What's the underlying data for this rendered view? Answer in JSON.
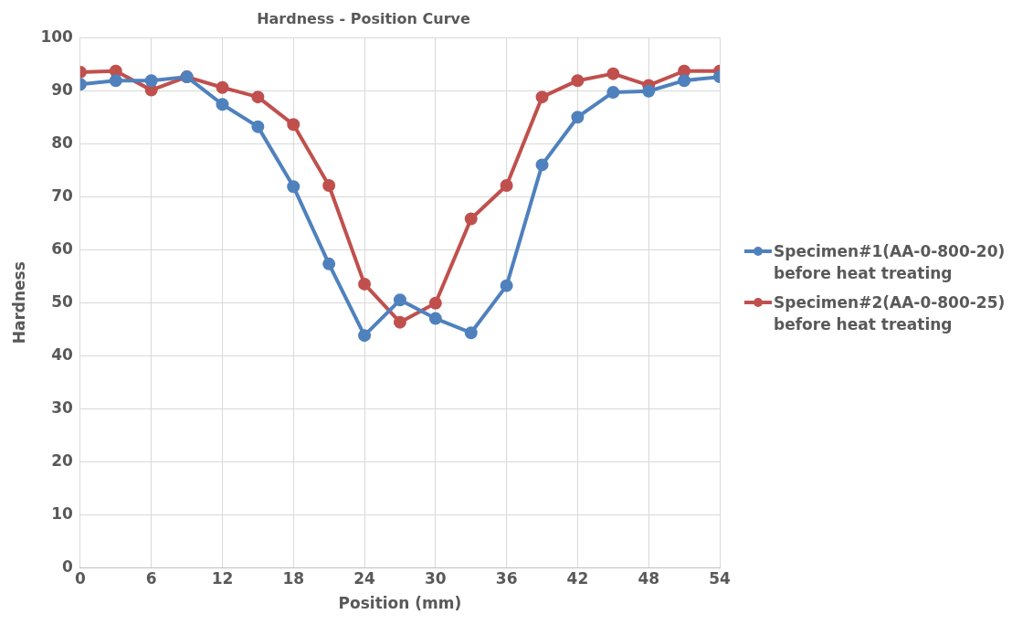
{
  "chart_data": {
    "type": "line",
    "title": "Hardness - Position Curve",
    "xlabel": "Position (mm)",
    "ylabel": "Hardness",
    "x": [
      0,
      3,
      6,
      9,
      12,
      15,
      18,
      21,
      24,
      27,
      30,
      33,
      36,
      39,
      42,
      45,
      48,
      51,
      54
    ],
    "xlim": [
      0,
      54
    ],
    "xticks": [
      0,
      6,
      12,
      18,
      24,
      30,
      36,
      42,
      48,
      54
    ],
    "ylim": [
      0,
      100
    ],
    "yticks": [
      0,
      10,
      20,
      30,
      40,
      50,
      60,
      70,
      80,
      90,
      100
    ],
    "grid": true,
    "legend": "right",
    "marker": "circle",
    "line_style": "solid",
    "series": [
      {
        "name": "Specimen#1(AA-0-800-20) before heat treating",
        "color": "#4f81bd",
        "values": [
          91.2,
          91.9,
          91.9,
          92.6,
          87.4,
          83.2,
          71.9,
          57.3,
          43.8,
          50.5,
          47.0,
          44.3,
          53.2,
          76.0,
          85.0,
          89.7,
          89.9,
          91.9,
          92.6
        ]
      },
      {
        "name": "Specimen#2(AA-0-800-25) before heat treating",
        "color": "#c0504d",
        "values": [
          93.5,
          93.7,
          90.1,
          92.6,
          90.6,
          88.8,
          83.6,
          72.1,
          53.5,
          46.3,
          49.9,
          65.8,
          72.1,
          88.8,
          91.9,
          93.2,
          91.0,
          93.7,
          93.7
        ]
      }
    ]
  }
}
